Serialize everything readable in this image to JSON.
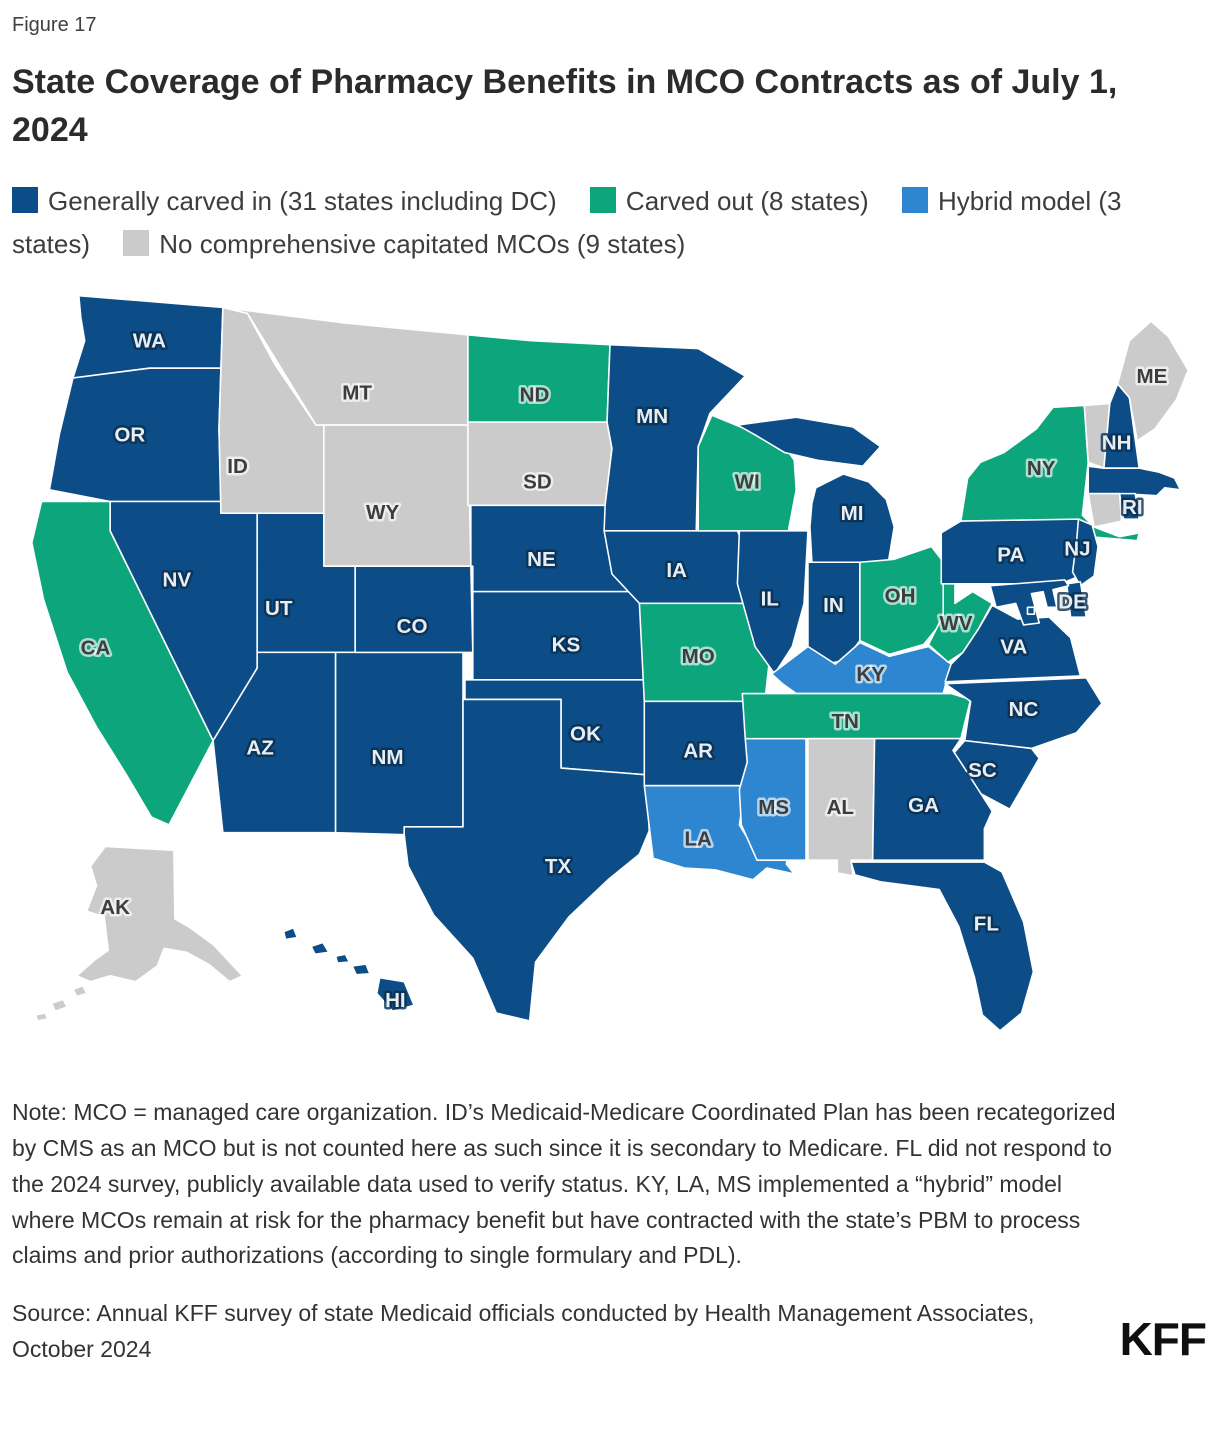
{
  "figure_label": "Figure 17",
  "title": "State Coverage of Pharmacy Benefits in MCO Contracts as of July 1, 2024",
  "legend": [
    {
      "key": "carved_in",
      "label": "Generally carved in (31 states including DC)",
      "color": "#0D4D87"
    },
    {
      "key": "carved_out",
      "label": "Carved out (8 states)",
      "color": "#0CA57C"
    },
    {
      "key": "hybrid",
      "label": "Hybrid model (3 states)",
      "color": "#2E86D0"
    },
    {
      "key": "none",
      "label": "No comprehensive capitated MCOs (9 states)",
      "color": "#CBCBCB"
    }
  ],
  "note": "Note: MCO = managed care organization. ID’s Medicaid-Medicare Coordinated Plan has been recategorized by CMS as an MCO but is not counted here as such since it is secondary to Medicare. FL did not respond to the 2024 survey, publicly available data used to verify status. KY, LA, MS implemented a “hybrid” model where MCOs remain at risk for the pharmacy benefit but have contracted with the state’s PBM to process claims and prior authorizations (according to single formulary and PDL).",
  "source": "Source: Annual KFF survey of state Medicaid officials conducted by Health Management Associates, October 2024",
  "logo": "KFF",
  "chart_data": {
    "type": "choropleth",
    "title": "State Coverage of Pharmacy Benefits in MCO Contracts as of July 1, 2024",
    "categories": {
      "carved_in": "Generally carved in (31 states including DC)",
      "carved_out": "Carved out (8 states)",
      "hybrid": "Hybrid model (3 states)",
      "none": "No comprehensive capitated MCOs (9 states)"
    },
    "states": [
      {
        "id": "WA",
        "label": "WA",
        "category": "carved_in"
      },
      {
        "id": "OR",
        "label": "OR",
        "category": "carved_in"
      },
      {
        "id": "CA",
        "label": "CA",
        "category": "carved_out"
      },
      {
        "id": "NV",
        "label": "NV",
        "category": "carved_in"
      },
      {
        "id": "ID",
        "label": "ID",
        "category": "none"
      },
      {
        "id": "MT",
        "label": "MT",
        "category": "none"
      },
      {
        "id": "WY",
        "label": "WY",
        "category": "none"
      },
      {
        "id": "UT",
        "label": "UT",
        "category": "carved_in"
      },
      {
        "id": "AZ",
        "label": "AZ",
        "category": "carved_in"
      },
      {
        "id": "NM",
        "label": "NM",
        "category": "carved_in"
      },
      {
        "id": "CO",
        "label": "CO",
        "category": "carved_in"
      },
      {
        "id": "ND",
        "label": "ND",
        "category": "carved_out"
      },
      {
        "id": "SD",
        "label": "SD",
        "category": "none"
      },
      {
        "id": "NE",
        "label": "NE",
        "category": "carved_in"
      },
      {
        "id": "KS",
        "label": "KS",
        "category": "carved_in"
      },
      {
        "id": "OK",
        "label": "OK",
        "category": "carved_in"
      },
      {
        "id": "TX",
        "label": "TX",
        "category": "carved_in"
      },
      {
        "id": "MN",
        "label": "MN",
        "category": "carved_in"
      },
      {
        "id": "IA",
        "label": "IA",
        "category": "carved_in"
      },
      {
        "id": "MO",
        "label": "MO",
        "category": "carved_out"
      },
      {
        "id": "AR",
        "label": "AR",
        "category": "carved_in"
      },
      {
        "id": "LA",
        "label": "LA",
        "category": "hybrid"
      },
      {
        "id": "WI",
        "label": "WI",
        "category": "carved_out"
      },
      {
        "id": "IL",
        "label": "IL",
        "category": "carved_in"
      },
      {
        "id": "MS",
        "label": "MS",
        "category": "hybrid"
      },
      {
        "id": "MI",
        "label": "MI",
        "category": "carved_in"
      },
      {
        "id": "IN",
        "label": "IN",
        "category": "carved_in"
      },
      {
        "id": "OH",
        "label": "OH",
        "category": "carved_out"
      },
      {
        "id": "KY",
        "label": "KY",
        "category": "hybrid"
      },
      {
        "id": "TN",
        "label": "TN",
        "category": "carved_out"
      },
      {
        "id": "AL",
        "label": "AL",
        "category": "none"
      },
      {
        "id": "WV",
        "label": "WV",
        "category": "carved_out"
      },
      {
        "id": "VA",
        "label": "VA",
        "category": "carved_in"
      },
      {
        "id": "NC",
        "label": "NC",
        "category": "carved_in"
      },
      {
        "id": "SC",
        "label": "SC",
        "category": "carved_in"
      },
      {
        "id": "GA",
        "label": "GA",
        "category": "carved_in"
      },
      {
        "id": "FL",
        "label": "FL",
        "category": "carved_in"
      },
      {
        "id": "PA",
        "label": "PA",
        "category": "carved_in"
      },
      {
        "id": "NY",
        "label": "NY",
        "category": "carved_out"
      },
      {
        "id": "NJ",
        "label": "NJ",
        "category": "carved_in"
      },
      {
        "id": "DE",
        "label": "DE",
        "category": "carved_in"
      },
      {
        "id": "MD",
        "label": "",
        "category": "carved_in"
      },
      {
        "id": "DC",
        "label": "",
        "category": "carved_in"
      },
      {
        "id": "VT",
        "label": "",
        "category": "none"
      },
      {
        "id": "NH",
        "label": "NH",
        "category": "carved_in"
      },
      {
        "id": "ME",
        "label": "ME",
        "category": "none"
      },
      {
        "id": "MA",
        "label": "",
        "category": "carved_in"
      },
      {
        "id": "RI",
        "label": "RI",
        "category": "carved_in"
      },
      {
        "id": "CT",
        "label": "",
        "category": "none"
      },
      {
        "id": "AK",
        "label": "AK",
        "category": "none"
      },
      {
        "id": "HI",
        "label": "HI",
        "category": "carved_in"
      }
    ]
  }
}
